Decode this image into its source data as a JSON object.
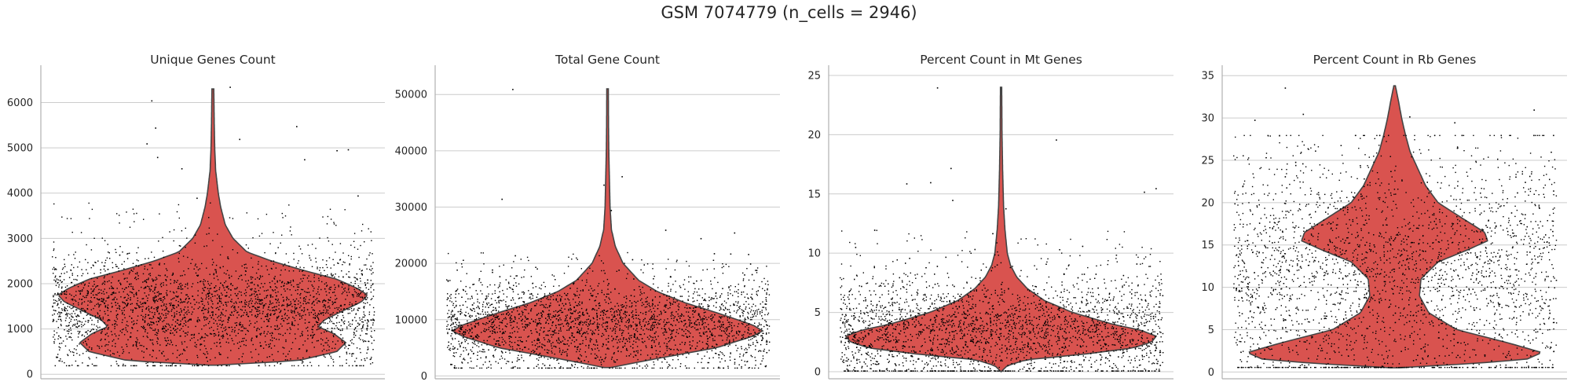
{
  "figure": {
    "title": "GSM 7074779 (n_cells = 2946)"
  },
  "colors": {
    "violin_fill": "#d9534f",
    "violin_edge": "#444444",
    "points": "#000000",
    "grid": "#cccccc",
    "axis": "#b0b0b0"
  },
  "chart_data": [
    {
      "type": "violin",
      "title": "Unique Genes Count",
      "xlabel": "",
      "ylabel": "",
      "ylim": [
        -100,
        6650
      ],
      "yticks": [
        0,
        1000,
        2000,
        3000,
        4000,
        5000,
        6000
      ],
      "grid": true,
      "density": [
        [
          200,
          0.02
        ],
        [
          300,
          0.55
        ],
        [
          500,
          0.8
        ],
        [
          700,
          0.86
        ],
        [
          900,
          0.78
        ],
        [
          1050,
          0.68
        ],
        [
          1200,
          0.72
        ],
        [
          1400,
          0.84
        ],
        [
          1600,
          0.96
        ],
        [
          1750,
          1.0
        ],
        [
          1900,
          0.93
        ],
        [
          2100,
          0.8
        ],
        [
          2300,
          0.58
        ],
        [
          2500,
          0.38
        ],
        [
          2700,
          0.22
        ],
        [
          3000,
          0.13
        ],
        [
          3300,
          0.08
        ],
        [
          3700,
          0.05
        ],
        [
          4000,
          0.035
        ],
        [
          4500,
          0.018
        ],
        [
          5000,
          0.012
        ],
        [
          5500,
          0.009
        ],
        [
          6300,
          0.006
        ]
      ],
      "y_range": [
        200,
        6300
      ],
      "width_scale": 0.9,
      "points": {
        "n": 2946,
        "median": 1400,
        "spread": 620,
        "min": 200,
        "max": 3800,
        "outliers": [
          4950,
          4970,
          5450,
          5100,
          5480,
          5200,
          4550,
          4750,
          6050,
          4800,
          6350,
          3950,
          3900
        ]
      }
    },
    {
      "type": "violin",
      "title": "Total Gene Count",
      "xlabel": "",
      "ylabel": "",
      "ylim": [
        -500,
        53800
      ],
      "yticks": [
        0,
        10000,
        20000,
        30000,
        40000,
        50000
      ],
      "grid": true,
      "density": [
        [
          1500,
          0.02
        ],
        [
          3000,
          0.3
        ],
        [
          5000,
          0.7
        ],
        [
          7000,
          0.93
        ],
        [
          8000,
          1.0
        ],
        [
          9000,
          0.94
        ],
        [
          11000,
          0.73
        ],
        [
          13000,
          0.5
        ],
        [
          15000,
          0.32
        ],
        [
          17000,
          0.2
        ],
        [
          20000,
          0.1
        ],
        [
          23000,
          0.05
        ],
        [
          26000,
          0.025
        ],
        [
          30000,
          0.016
        ],
        [
          35000,
          0.012
        ],
        [
          40000,
          0.008
        ],
        [
          45000,
          0.006
        ],
        [
          51000,
          0.005
        ]
      ],
      "y_range": [
        1500,
        51000
      ],
      "width_scale": 0.9,
      "points": {
        "n": 2946,
        "median": 9000,
        "spread": 4200,
        "min": 1500,
        "max": 22000,
        "outliers": [
          35500,
          34000,
          29500,
          31500,
          26000,
          51000,
          25500,
          24500
        ]
      }
    },
    {
      "type": "violin",
      "title": "Percent Count in Mt Genes",
      "xlabel": "",
      "ylabel": "",
      "ylim": [
        -0.6,
        25.2
      ],
      "yticks": [
        0,
        5,
        10,
        15,
        20,
        25
      ],
      "grid": true,
      "density": [
        [
          0,
          0.0
        ],
        [
          0.5,
          0.04
        ],
        [
          1,
          0.16
        ],
        [
          1.5,
          0.55
        ],
        [
          2,
          0.85
        ],
        [
          2.5,
          0.97
        ],
        [
          3,
          1.0
        ],
        [
          3.5,
          0.9
        ],
        [
          4,
          0.72
        ],
        [
          5,
          0.46
        ],
        [
          6,
          0.28
        ],
        [
          7,
          0.17
        ],
        [
          8,
          0.1
        ],
        [
          9,
          0.06
        ],
        [
          10,
          0.04
        ],
        [
          12,
          0.025
        ],
        [
          14,
          0.016
        ],
        [
          17,
          0.01
        ],
        [
          20,
          0.006
        ],
        [
          24,
          0.004
        ]
      ],
      "y_range": [
        0,
        24
      ],
      "width_scale": 0.9,
      "points": {
        "n": 2946,
        "median": 3.3,
        "spread": 2.4,
        "min": 0.1,
        "max": 12,
        "outliers": [
          24,
          19.6,
          17.2,
          16,
          15.5,
          15.2,
          14.5,
          15.9,
          13.8
        ]
      }
    },
    {
      "type": "violin",
      "title": "Percent Count in Rb Genes",
      "xlabel": "",
      "ylabel": "",
      "ylim": [
        -0.8,
        35.3
      ],
      "yticks": [
        0,
        5,
        10,
        15,
        20,
        25,
        30,
        35
      ],
      "grid": true,
      "density": [
        [
          0.5,
          0.03
        ],
        [
          1,
          0.5
        ],
        [
          1.5,
          0.85
        ],
        [
          2.3,
          0.95
        ],
        [
          3.5,
          0.72
        ],
        [
          5,
          0.4
        ],
        [
          7,
          0.22
        ],
        [
          9,
          0.16
        ],
        [
          11,
          0.17
        ],
        [
          13,
          0.28
        ],
        [
          14.5,
          0.48
        ],
        [
          15.5,
          0.6
        ],
        [
          16.5,
          0.58
        ],
        [
          18,
          0.45
        ],
        [
          20,
          0.28
        ],
        [
          22,
          0.2
        ],
        [
          24,
          0.15
        ],
        [
          26,
          0.1
        ],
        [
          28,
          0.07
        ],
        [
          30,
          0.045
        ],
        [
          32,
          0.025
        ],
        [
          33.8,
          0.005
        ]
      ],
      "y_range": [
        0.5,
        33.8
      ],
      "width_scale": 0.9,
      "points": {
        "n": 2946,
        "median": 11,
        "spread": 7.5,
        "min": 0.6,
        "max": 28,
        "outliers": [
          30.5,
          30.2,
          29.8,
          33.6,
          31,
          29.5
        ]
      }
    }
  ]
}
